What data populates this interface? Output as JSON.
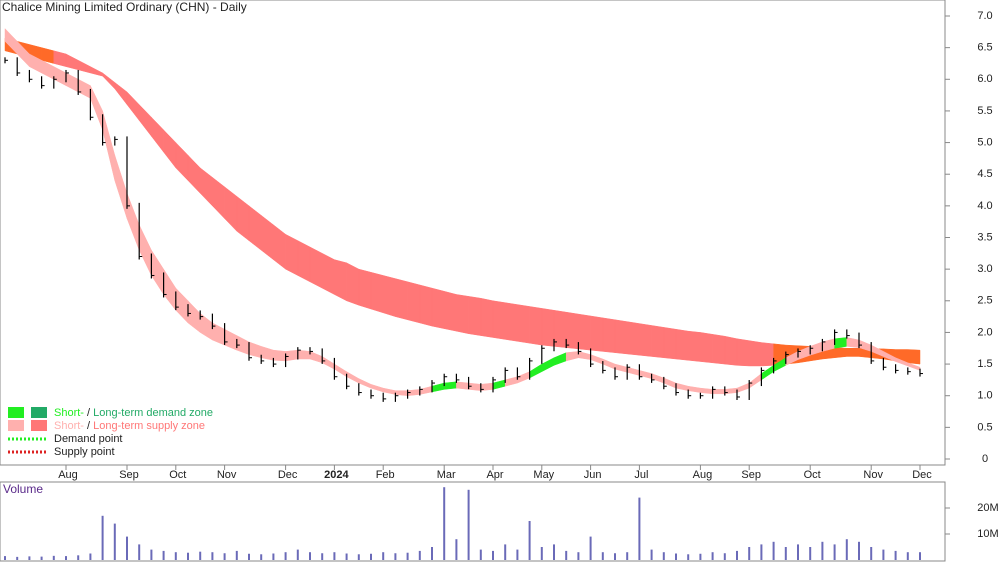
{
  "chart_data": {
    "type": "stock",
    "title": "Chalice Mining Limited Ordinary (CHN) - Daily",
    "categories": [
      null,
      null,
      null,
      null,
      null,
      "Aug",
      null,
      null,
      null,
      null,
      "Sep",
      null,
      null,
      null,
      "Oct",
      null,
      null,
      null,
      "Nov",
      null,
      null,
      null,
      null,
      "Dec",
      null,
      null,
      null,
      "2024",
      null,
      null,
      null,
      "Feb",
      null,
      null,
      null,
      null,
      "Mar",
      null,
      null,
      null,
      "Apr",
      null,
      null,
      null,
      "May",
      null,
      null,
      null,
      "Jun",
      null,
      null,
      null,
      "Jul",
      null,
      null,
      null,
      null,
      "Aug",
      null,
      null,
      null,
      "Sep",
      null,
      null,
      null,
      null,
      "Oct",
      null,
      null,
      null,
      null,
      "Nov",
      null,
      null,
      null,
      "Dec"
    ],
    "close": [
      6.3,
      6.1,
      6.0,
      5.9,
      6.0,
      6.1,
      5.8,
      5.4,
      5.0,
      5.05,
      4.0,
      3.2,
      2.9,
      2.6,
      2.4,
      2.3,
      2.25,
      2.1,
      1.85,
      1.8,
      1.6,
      1.55,
      1.5,
      1.62,
      1.72,
      1.7,
      1.55,
      1.3,
      1.15,
      1.05,
      1.0,
      0.95,
      1.0,
      1.05,
      1.1,
      1.2,
      1.3,
      1.25,
      1.15,
      1.1,
      1.25,
      1.4,
      1.3,
      1.55,
      1.75,
      1.85,
      1.8,
      1.7,
      1.5,
      1.4,
      1.3,
      1.45,
      1.3,
      1.25,
      1.15,
      1.05,
      1.0,
      1.0,
      1.1,
      1.05,
      0.98,
      1.2,
      1.4,
      1.55,
      1.65,
      1.7,
      1.75,
      1.85,
      2.0,
      1.95,
      1.8,
      1.55,
      1.45,
      1.4,
      1.38,
      1.35
    ],
    "long_upper": [
      6.65,
      6.6,
      6.55,
      6.5,
      6.45,
      6.4,
      6.3,
      6.2,
      6.1,
      5.95,
      5.8,
      5.6,
      5.4,
      5.2,
      5.0,
      4.8,
      4.6,
      4.45,
      4.3,
      4.15,
      4.0,
      3.85,
      3.7,
      3.55,
      3.45,
      3.35,
      3.25,
      3.15,
      3.1,
      3.0,
      2.95,
      2.9,
      2.85,
      2.8,
      2.75,
      2.7,
      2.65,
      2.6,
      2.57,
      2.54,
      2.5,
      2.47,
      2.44,
      2.41,
      2.38,
      2.35,
      2.32,
      2.29,
      2.26,
      2.23,
      2.2,
      2.17,
      2.14,
      2.11,
      2.08,
      2.05,
      2.02,
      2.0,
      1.97,
      1.94,
      1.9,
      1.87,
      1.84,
      1.82,
      1.8,
      1.79,
      1.78,
      1.77,
      1.76,
      1.75,
      1.75,
      1.74,
      1.74,
      1.73,
      1.73,
      1.72
    ],
    "long_lower": [
      6.45,
      6.4,
      6.35,
      6.3,
      6.25,
      6.2,
      6.15,
      6.1,
      6.05,
      5.85,
      5.6,
      5.35,
      5.1,
      4.85,
      4.6,
      4.4,
      4.2,
      4.0,
      3.8,
      3.6,
      3.45,
      3.3,
      3.15,
      3.0,
      2.9,
      2.8,
      2.7,
      2.6,
      2.5,
      2.43,
      2.37,
      2.31,
      2.25,
      2.2,
      2.15,
      2.1,
      2.06,
      2.02,
      1.98,
      1.95,
      1.92,
      1.89,
      1.86,
      1.83,
      1.8,
      1.78,
      1.76,
      1.74,
      1.72,
      1.7,
      1.68,
      1.66,
      1.64,
      1.62,
      1.6,
      1.58,
      1.56,
      1.54,
      1.52,
      1.5,
      1.48,
      1.47,
      1.47,
      1.48,
      1.5,
      1.52,
      1.55,
      1.58,
      1.6,
      1.62,
      1.62,
      1.6,
      1.58,
      1.55,
      1.52,
      1.5
    ],
    "short_upper": [
      6.8,
      6.6,
      6.4,
      6.3,
      6.2,
      6.1,
      6.0,
      5.9,
      5.5,
      4.8,
      4.2,
      3.7,
      3.3,
      3.0,
      2.7,
      2.5,
      2.3,
      2.15,
      2.05,
      1.95,
      1.85,
      1.78,
      1.72,
      1.7,
      1.72,
      1.7,
      1.62,
      1.5,
      1.38,
      1.27,
      1.18,
      1.12,
      1.08,
      1.08,
      1.1,
      1.15,
      1.2,
      1.22,
      1.2,
      1.18,
      1.2,
      1.25,
      1.3,
      1.38,
      1.5,
      1.6,
      1.68,
      1.7,
      1.65,
      1.58,
      1.5,
      1.45,
      1.4,
      1.35,
      1.28,
      1.2,
      1.15,
      1.12,
      1.1,
      1.1,
      1.12,
      1.2,
      1.35,
      1.48,
      1.6,
      1.7,
      1.78,
      1.85,
      1.9,
      1.92,
      1.88,
      1.8,
      1.7,
      1.6,
      1.52,
      1.45
    ],
    "short_lower": [
      6.6,
      6.4,
      6.2,
      6.1,
      6.0,
      5.9,
      5.8,
      5.7,
      5.2,
      4.4,
      3.8,
      3.3,
      2.9,
      2.6,
      2.35,
      2.15,
      2.0,
      1.88,
      1.8,
      1.72,
      1.65,
      1.6,
      1.56,
      1.55,
      1.58,
      1.58,
      1.52,
      1.42,
      1.3,
      1.2,
      1.12,
      1.06,
      1.02,
      1.0,
      1.02,
      1.06,
      1.1,
      1.12,
      1.1,
      1.08,
      1.1,
      1.15,
      1.2,
      1.28,
      1.38,
      1.48,
      1.55,
      1.6,
      1.57,
      1.5,
      1.42,
      1.37,
      1.32,
      1.27,
      1.2,
      1.12,
      1.08,
      1.05,
      1.03,
      1.03,
      1.05,
      1.12,
      1.25,
      1.38,
      1.48,
      1.57,
      1.64,
      1.7,
      1.75,
      1.78,
      1.76,
      1.7,
      1.62,
      1.54,
      1.47,
      1.4
    ],
    "volume": [
      1.5,
      1.2,
      1.4,
      1.3,
      1.6,
      1.5,
      1.8,
      2.5,
      17,
      14,
      9,
      6,
      4,
      3.5,
      3,
      2.8,
      3.2,
      3,
      2.6,
      3.5,
      2.4,
      2.2,
      2.5,
      3,
      4,
      3,
      2.6,
      3,
      2.5,
      2.2,
      2.4,
      3,
      2.6,
      2.8,
      3.5,
      5,
      28,
      8,
      27,
      4,
      3.5,
      6,
      4,
      15,
      5,
      6,
      3.5,
      3,
      9,
      3,
      2.6,
      3,
      24,
      4,
      3,
      2.5,
      2.2,
      2.4,
      3,
      2.6,
      3.5,
      5,
      6,
      7,
      5,
      6,
      5,
      7,
      6,
      8,
      7,
      5,
      4,
      3.5,
      3,
      3
    ],
    "ylim": [
      0,
      7.2
    ],
    "yticks": [
      0,
      0.5,
      {
        "value": 1,
        "label": "1.0"
      },
      1.5,
      {
        "value": 2,
        "label": "2.0"
      },
      2.5,
      {
        "value": 3,
        "label": "3.0"
      },
      3.5,
      {
        "value": 4,
        "label": "4.0"
      },
      4.5,
      {
        "value": 5,
        "label": "5.0"
      },
      5.5,
      {
        "value": 6,
        "label": "6.0"
      },
      6.5,
      {
        "value": 7,
        "label": "7.0"
      }
    ],
    "volume_label": "Volume",
    "volume_ylim": [
      0,
      30
    ],
    "volume_yticks": [
      {
        "value": 10,
        "label": "10M"
      },
      {
        "value": 20,
        "label": "20M"
      }
    ],
    "colors": {
      "candle": "#000000",
      "long_supply": "#ff7777",
      "long_overlap": "#ff6a28",
      "short_supply": "#ffb0ae",
      "short_demand": "#22ee22",
      "volume": "#6a6ab8"
    },
    "legend": [
      {
        "short": "Short-",
        "sep": " / ",
        "long": "Long-term demand zone"
      },
      {
        "short": "Short-",
        "sep": " / ",
        "long": "Long-term supply zone"
      },
      {
        "text": "Demand point"
      },
      {
        "text": "Supply point"
      }
    ]
  }
}
